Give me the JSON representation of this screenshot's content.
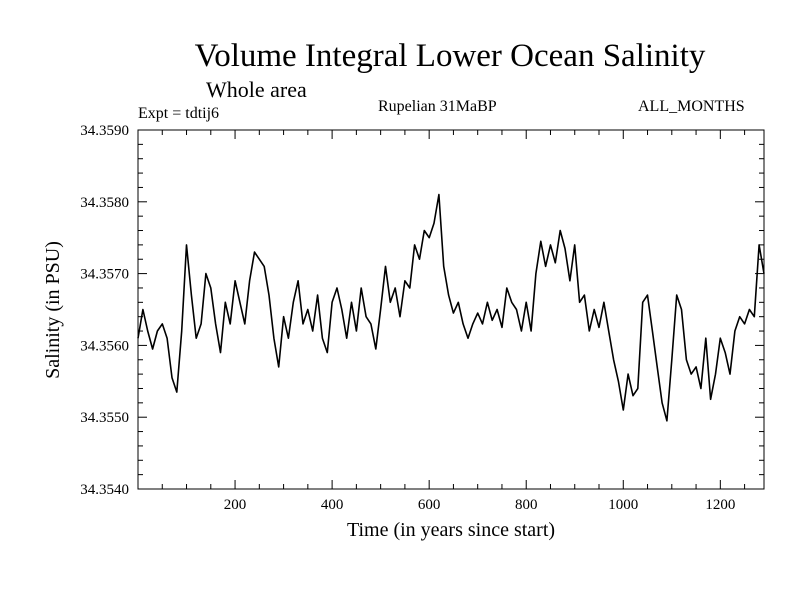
{
  "header": {
    "title": "Volume Integral Lower Ocean Salinity",
    "subtitle": "Whole area",
    "experiment": "Expt = tdtij6",
    "period": "Rupelian  31MaBP",
    "months": "ALL_MONTHS"
  },
  "chart_data": {
    "type": "line",
    "title": "Volume Integral Lower Ocean Salinity",
    "xlabel": "Time (in years since start)",
    "ylabel": "Salinity (in PSU)",
    "xlim": [
      0,
      1290
    ],
    "ylim": [
      34.354,
      34.359
    ],
    "x_ticks": [
      200,
      400,
      600,
      800,
      1000,
      1200
    ],
    "y_ticks": [
      34.354,
      34.355,
      34.356,
      34.357,
      34.358,
      34.359
    ],
    "y_tick_labels": [
      "34.3540",
      "34.3550",
      "34.3560",
      "34.3570",
      "34.3580",
      "34.3590"
    ],
    "grid": false,
    "series": [
      {
        "name": "Salinity",
        "x": [
          0,
          10,
          20,
          30,
          40,
          50,
          60,
          70,
          80,
          90,
          100,
          110,
          120,
          130,
          140,
          150,
          160,
          170,
          180,
          190,
          200,
          210,
          220,
          230,
          240,
          250,
          260,
          270,
          280,
          290,
          300,
          310,
          320,
          330,
          340,
          350,
          360,
          370,
          380,
          390,
          400,
          410,
          420,
          430,
          440,
          450,
          460,
          470,
          480,
          490,
          500,
          510,
          520,
          530,
          540,
          550,
          560,
          570,
          580,
          590,
          600,
          610,
          620,
          630,
          640,
          650,
          660,
          670,
          680,
          690,
          700,
          710,
          720,
          730,
          740,
          750,
          760,
          770,
          780,
          790,
          800,
          810,
          820,
          830,
          840,
          850,
          860,
          870,
          880,
          890,
          900,
          910,
          920,
          930,
          940,
          950,
          960,
          970,
          980,
          990,
          1000,
          1010,
          1020,
          1030,
          1040,
          1050,
          1060,
          1070,
          1080,
          1090,
          1100,
          1110,
          1120,
          1130,
          1140,
          1150,
          1160,
          1170,
          1180,
          1190,
          1200,
          1210,
          1220,
          1230,
          1240,
          1250,
          1260,
          1270,
          1280,
          1290
        ],
        "values": [
          34.3561,
          34.3565,
          34.3562,
          34.35595,
          34.3562,
          34.3563,
          34.3561,
          34.35555,
          34.35535,
          34.3562,
          34.3574,
          34.3567,
          34.3561,
          34.3563,
          34.357,
          34.3568,
          34.3563,
          34.3559,
          34.3566,
          34.3563,
          34.3569,
          34.3566,
          34.3563,
          34.3569,
          34.3573,
          34.3572,
          34.3571,
          34.3567,
          34.3561,
          34.3557,
          34.3564,
          34.3561,
          34.3566,
          34.3569,
          34.3563,
          34.3565,
          34.3562,
          34.3567,
          34.3561,
          34.3559,
          34.3566,
          34.3568,
          34.3565,
          34.3561,
          34.3566,
          34.3562,
          34.3568,
          34.3564,
          34.3563,
          34.35595,
          34.3565,
          34.3571,
          34.3566,
          34.3568,
          34.3564,
          34.3569,
          34.3568,
          34.3574,
          34.3572,
          34.3576,
          34.3575,
          34.3577,
          34.3581,
          34.3571,
          34.3567,
          34.35645,
          34.3566,
          34.3563,
          34.3561,
          34.3563,
          34.35645,
          34.3563,
          34.3566,
          34.35635,
          34.3565,
          34.35625,
          34.3568,
          34.3566,
          34.3565,
          34.3562,
          34.3566,
          34.3562,
          34.357,
          34.35745,
          34.3571,
          34.3574,
          34.35715,
          34.3576,
          34.35735,
          34.3569,
          34.3574,
          34.3566,
          34.3567,
          34.3562,
          34.3565,
          34.35625,
          34.3566,
          34.3562,
          34.3558,
          34.3555,
          34.3551,
          34.3556,
          34.3553,
          34.3554,
          34.3566,
          34.3567,
          34.3562,
          34.3557,
          34.3552,
          34.35495,
          34.3558,
          34.3567,
          34.3565,
          34.3558,
          34.3556,
          34.3557,
          34.3554,
          34.3561,
          34.35525,
          34.3556,
          34.3561,
          34.3559,
          34.3556,
          34.3562,
          34.3564,
          34.3563,
          34.3565,
          34.3564,
          34.3574,
          34.357
        ]
      }
    ]
  }
}
